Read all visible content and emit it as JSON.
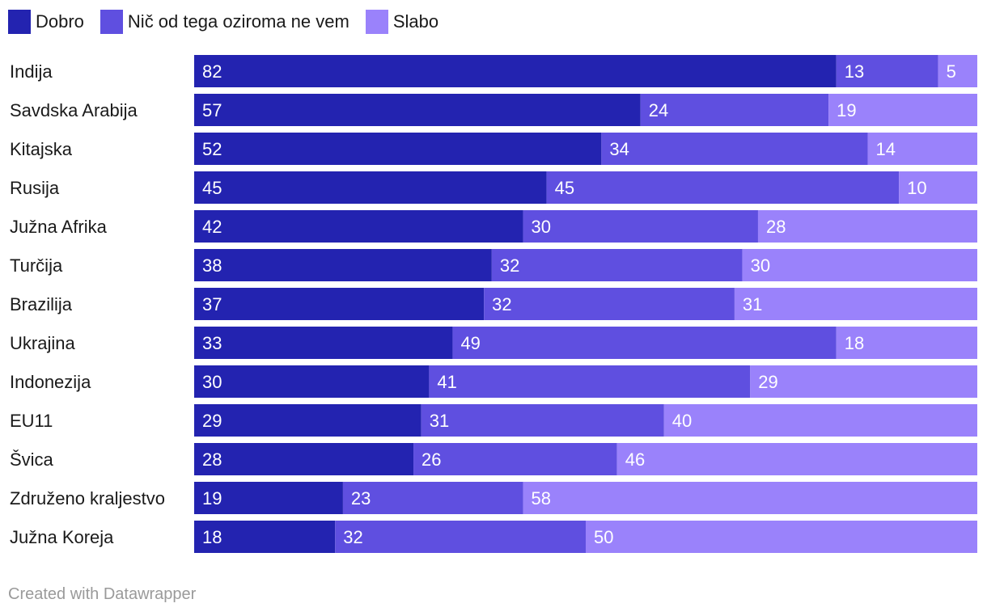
{
  "chart_data": {
    "type": "bar",
    "orientation": "horizontal",
    "stacked": true,
    "unit": "percent",
    "xlim": [
      0,
      100
    ],
    "legend_position": "top-left",
    "series": [
      {
        "name": "Dobro",
        "color": "#2323b0",
        "values": [
          82,
          57,
          52,
          45,
          42,
          38,
          37,
          33,
          30,
          29,
          28,
          19,
          18
        ]
      },
      {
        "name": "Nič od tega oziroma ne vem",
        "color": "#5f4fe0",
        "values": [
          13,
          24,
          34,
          45,
          30,
          32,
          32,
          49,
          41,
          31,
          26,
          23,
          32
        ]
      },
      {
        "name": "Slabo",
        "color": "#9a82fb",
        "values": [
          5,
          19,
          14,
          10,
          28,
          30,
          31,
          18,
          29,
          40,
          46,
          58,
          50
        ]
      }
    ],
    "categories": [
      "Indija",
      "Savdska Arabija",
      "Kitajska",
      "Rusija",
      "Južna Afrika",
      "Turčija",
      "Brazilija",
      "Ukrajina",
      "Indonezija",
      "EU11",
      "Švica",
      "Združeno kraljestvo",
      "Južna Koreja"
    ]
  },
  "credit": "Created with Datawrapper"
}
